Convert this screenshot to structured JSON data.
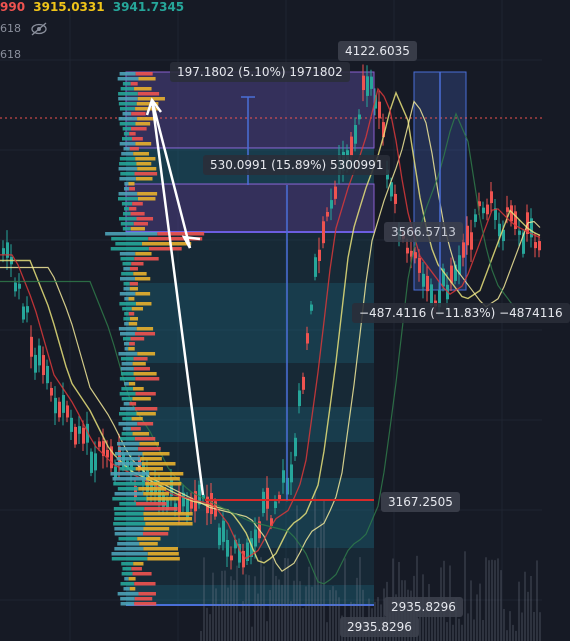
{
  "legend": {
    "o_partial": "990",
    "high": "3915.0331",
    "close": "3941.7345",
    "row2_value": "618",
    "row3_value": "618",
    "visibility_icon": "eye-off-icon"
  },
  "measurements": {
    "top_label": "197.1802 (5.10%) 1971802",
    "mid_label": "530.0991 (15.89%) 5300991",
    "right_label": "−487.4116 (−11.83%) −4874116"
  },
  "price_labels": {
    "high_label": "4122.6035",
    "poc_label": "3566.5713",
    "red_line_label": "3167.2505",
    "range_low_label": "2935.8296",
    "axis_low_label": "2935.8296"
  },
  "colors": {
    "background": "#161a25",
    "up": "#26a69a",
    "down": "#ef5350",
    "profile_up": "#e8b02e",
    "profile_down": "#ef5350",
    "profile_neutral": "#4ca3b8",
    "box_purple": "#6a3fa0",
    "box_teal": "#1c6f86",
    "measure_blue": "#4a6fd8",
    "red_level": "#d42a2a"
  }
}
